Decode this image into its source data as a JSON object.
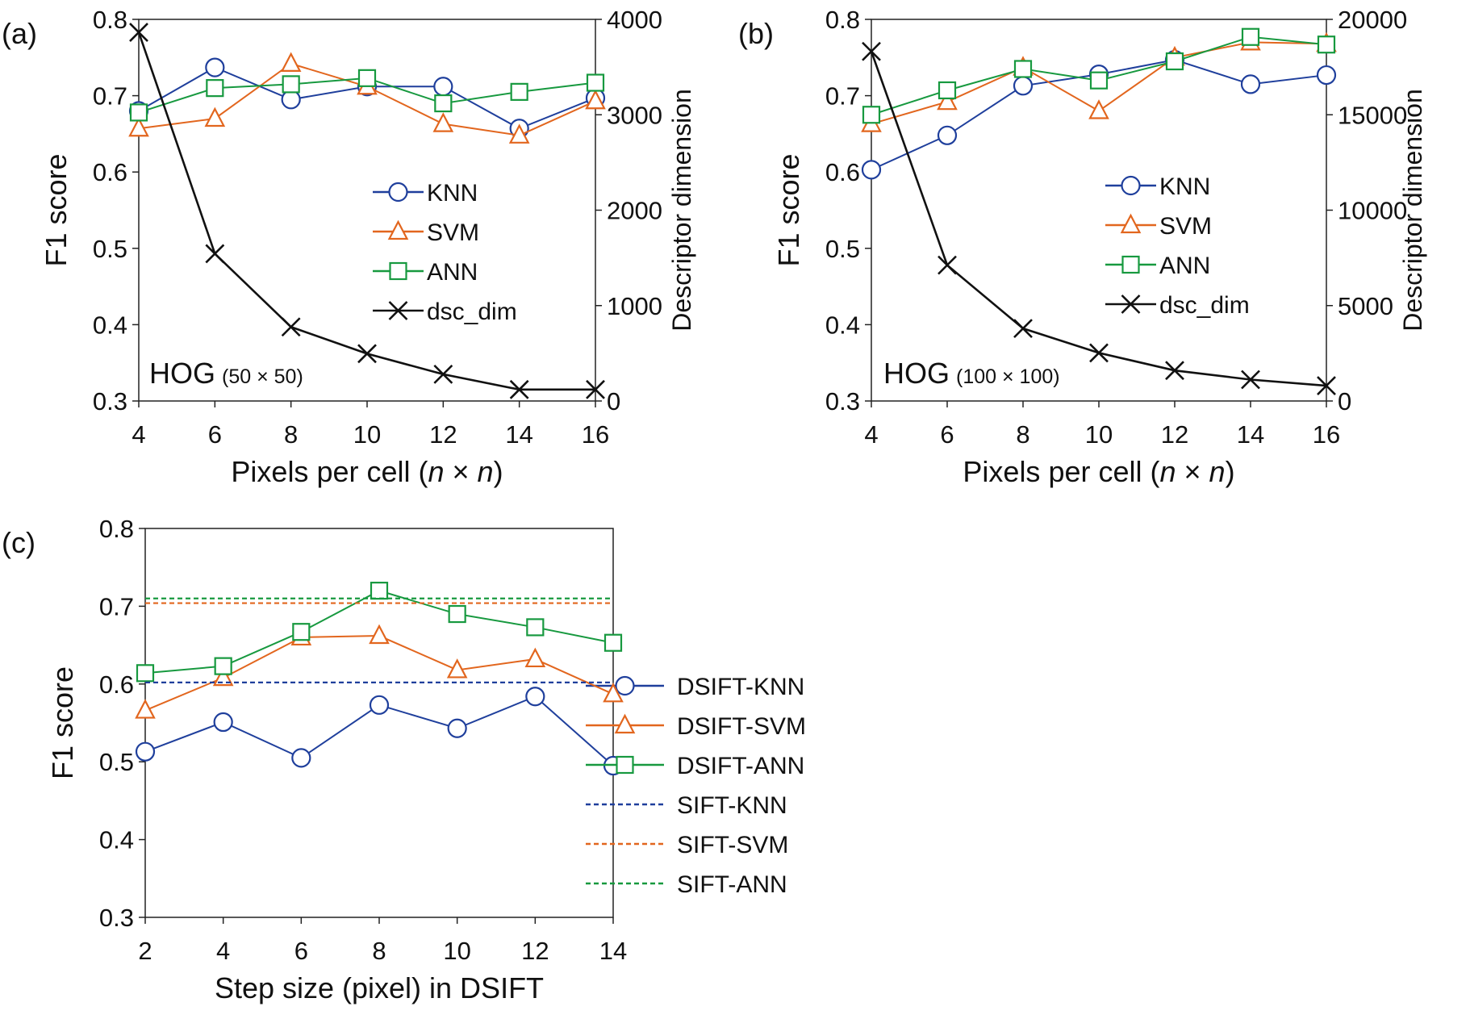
{
  "colors": {
    "KNN": "#1f3f9c",
    "SVM": "#e2661e",
    "ANN": "#17993f",
    "dsc_dim": "#111111"
  },
  "chart_data": [
    {
      "panel_label": "(a)",
      "type": "line",
      "annotation": "HOG",
      "annotation_sub": "(50 × 50)",
      "xlabel": "Pixels per cell (n × n)",
      "xlabel_parts": [
        "Pixels per cell (",
        "n",
        " × ",
        "n",
        ")"
      ],
      "ylabel": "F1 score",
      "y2label": "Descriptor dimension",
      "x": [
        4,
        6,
        8,
        10,
        12,
        14,
        16
      ],
      "xlim": [
        4,
        16
      ],
      "ylim": [
        0.3,
        0.8
      ],
      "y2lim": [
        0,
        4000
      ],
      "yticks": [
        "0.3",
        "0.4",
        "0.5",
        "0.6",
        "0.7",
        "0.8"
      ],
      "y2ticks": [
        "0",
        "1000",
        "2000",
        "3000",
        "4000"
      ],
      "legend_position": "center-right",
      "series": [
        {
          "name": "KNN",
          "marker": "circle",
          "axis": "left",
          "values": [
            0.68,
            0.737,
            0.695,
            0.712,
            0.712,
            0.657,
            0.697
          ]
        },
        {
          "name": "SVM",
          "marker": "triangle",
          "axis": "left",
          "values": [
            0.657,
            0.67,
            0.742,
            0.712,
            0.663,
            0.648,
            0.693
          ]
        },
        {
          "name": "ANN",
          "marker": "square",
          "axis": "left",
          "values": [
            0.678,
            0.71,
            0.715,
            0.723,
            0.69,
            0.705,
            0.717
          ]
        },
        {
          "name": "dsc_dim",
          "marker": "x",
          "axis": "right",
          "values": [
            3864,
            1544,
            776,
            496,
            280,
            120,
            120
          ]
        }
      ]
    },
    {
      "panel_label": "(b)",
      "type": "line",
      "annotation": "HOG",
      "annotation_sub": "(100 × 100)",
      "xlabel": "Pixels per cell (n × n)",
      "xlabel_parts": [
        "Pixels per cell (",
        "n",
        " × ",
        "n",
        ")"
      ],
      "ylabel": "F1 score",
      "y2label": "Descriptor dimension",
      "x": [
        4,
        6,
        8,
        10,
        12,
        14,
        16
      ],
      "xlim": [
        4,
        16
      ],
      "ylim": [
        0.3,
        0.8
      ],
      "y2lim": [
        0,
        20000
      ],
      "yticks": [
        "0.3",
        "0.4",
        "0.5",
        "0.6",
        "0.7",
        "0.8"
      ],
      "y2ticks": [
        "0",
        "5000",
        "10000",
        "15000",
        "20000"
      ],
      "legend_position": "center-right",
      "series": [
        {
          "name": "KNN",
          "marker": "circle",
          "axis": "left",
          "values": [
            0.603,
            0.648,
            0.713,
            0.728,
            0.747,
            0.715,
            0.727
          ]
        },
        {
          "name": "SVM",
          "marker": "triangle",
          "axis": "left",
          "values": [
            0.663,
            0.692,
            0.737,
            0.68,
            0.75,
            0.77,
            0.768
          ]
        },
        {
          "name": "ANN",
          "marker": "square",
          "axis": "left",
          "values": [
            0.675,
            0.707,
            0.735,
            0.72,
            0.745,
            0.777,
            0.767
          ]
        },
        {
          "name": "dsc_dim",
          "marker": "x",
          "axis": "right",
          "values": [
            18320,
            7120,
            3800,
            2520,
            1600,
            1120,
            800
          ]
        }
      ]
    },
    {
      "panel_label": "(c)",
      "type": "line",
      "xlabel": "Step size (pixel) in DSIFT",
      "ylabel": "F1 score",
      "x": [
        2,
        4,
        6,
        8,
        10,
        12,
        14
      ],
      "xlim": [
        2,
        14
      ],
      "ylim": [
        0.3,
        0.8
      ],
      "yticks": [
        "0.3",
        "0.4",
        "0.5",
        "0.6",
        "0.7",
        "0.8"
      ],
      "legend_position": "outside-right",
      "series": [
        {
          "name": "DSIFT-KNN",
          "marker": "circle",
          "color_key": "KNN",
          "values": [
            0.513,
            0.551,
            0.505,
            0.573,
            0.543,
            0.584,
            0.495
          ]
        },
        {
          "name": "DSIFT-SVM",
          "marker": "triangle",
          "color_key": "SVM",
          "values": [
            0.566,
            0.608,
            0.66,
            0.662,
            0.618,
            0.632,
            0.587
          ]
        },
        {
          "name": "DSIFT-ANN",
          "marker": "square",
          "color_key": "ANN",
          "values": [
            0.614,
            0.623,
            0.667,
            0.72,
            0.69,
            0.673,
            0.653
          ]
        },
        {
          "name": "SIFT-KNN",
          "style": "dashed",
          "color_key": "KNN",
          "constant": 0.602
        },
        {
          "name": "SIFT-SVM",
          "style": "dashed",
          "color_key": "SVM",
          "constant": 0.704
        },
        {
          "name": "SIFT-ANN",
          "style": "dashed",
          "color_key": "ANN",
          "constant": 0.71
        }
      ]
    }
  ]
}
